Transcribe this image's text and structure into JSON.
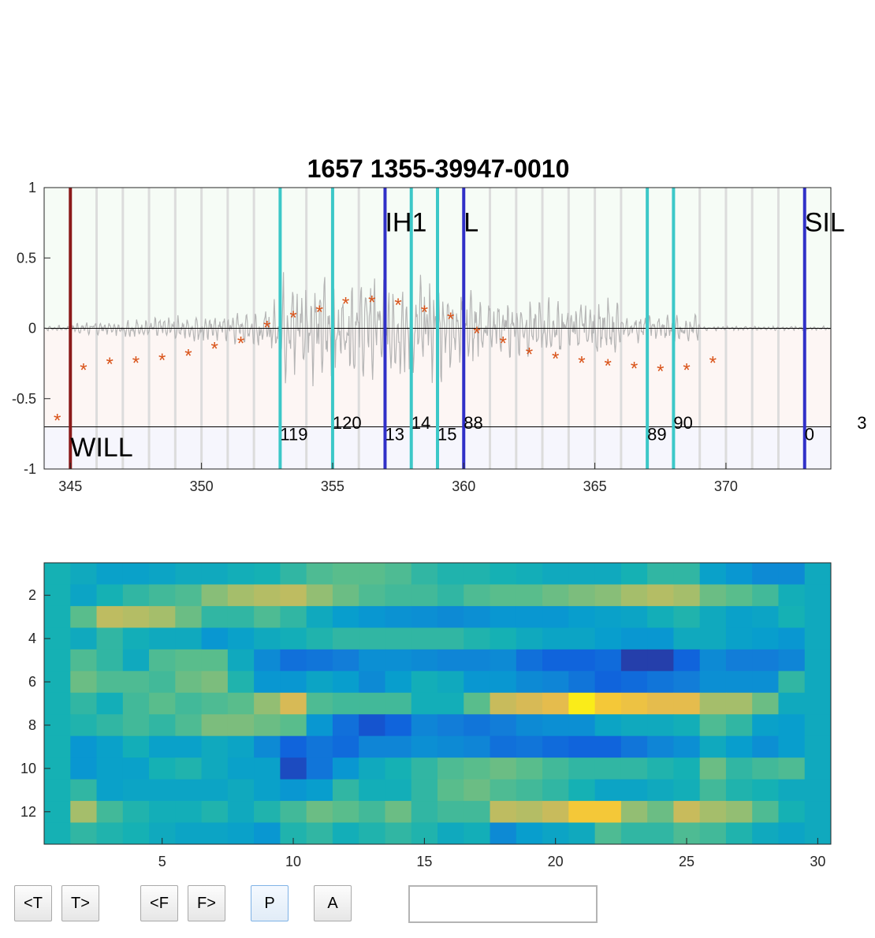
{
  "waveform_plot": {
    "title": "1657 1355-39947-0010",
    "ylim": [
      -1,
      1
    ],
    "xlim": [
      344,
      374
    ],
    "yticks": [
      1,
      0.5,
      0,
      -0.5,
      -1
    ],
    "ytick_labels": [
      "1",
      "0.5",
      "0",
      "-0.5",
      "-1"
    ],
    "xticks": [
      345,
      350,
      355,
      360,
      365,
      370
    ],
    "xtick_labels": [
      "345",
      "350",
      "355",
      "360",
      "365",
      "370"
    ],
    "label_line_y": -0.7,
    "frame_grid": [
      346,
      347,
      348,
      349,
      350,
      351,
      352,
      353,
      354,
      355,
      356,
      357,
      358,
      359,
      360,
      361,
      362,
      363,
      364,
      365,
      366,
      367,
      368,
      369,
      370,
      371,
      372,
      373
    ],
    "word_boundaries": [
      {
        "x": 345,
        "color": "#8b1a1a"
      }
    ],
    "phone_boundaries": [
      {
        "x": 357,
        "color": "#3030c8"
      },
      {
        "x": 360,
        "color": "#3030c8"
      },
      {
        "x": 373,
        "color": "#3030c8"
      }
    ],
    "state_boundaries": [
      {
        "x": 353,
        "color": "#3cc8c8"
      },
      {
        "x": 355,
        "color": "#3cc8c8"
      },
      {
        "x": 358,
        "color": "#3cc8c8"
      },
      {
        "x": 359,
        "color": "#3cc8c8"
      },
      {
        "x": 367,
        "color": "#3cc8c8"
      },
      {
        "x": 368,
        "color": "#3cc8c8"
      }
    ],
    "word_labels": [
      {
        "x": 345,
        "y": -0.82,
        "text": "WILL"
      }
    ],
    "phone_labels": [
      {
        "x": 357,
        "y": 0.78,
        "text": "IH1"
      },
      {
        "x": 360,
        "y": 0.78,
        "text": "L"
      },
      {
        "x": 373,
        "y": 0.78,
        "text": "SIL"
      }
    ],
    "frame_labels": [
      {
        "x": 353,
        "y": -0.75,
        "text": "119"
      },
      {
        "x": 355,
        "y": -0.67,
        "text": "120"
      },
      {
        "x": 357,
        "y": -0.75,
        "text": "13"
      },
      {
        "x": 358,
        "y": -0.67,
        "text": "14"
      },
      {
        "x": 359,
        "y": -0.75,
        "text": "15"
      },
      {
        "x": 360,
        "y": -0.67,
        "text": "88"
      },
      {
        "x": 367,
        "y": -0.75,
        "text": "89"
      },
      {
        "x": 368,
        "y": -0.67,
        "text": "90"
      },
      {
        "x": 373,
        "y": -0.75,
        "text": "0"
      },
      {
        "x": 375,
        "y": -0.67,
        "text": "3"
      }
    ],
    "markers": {
      "symbol": "*",
      "color": "#d95319",
      "points": [
        [
          344.5,
          -0.65
        ],
        [
          345.5,
          -0.29
        ],
        [
          346.5,
          -0.25
        ],
        [
          347.5,
          -0.24
        ],
        [
          348.5,
          -0.22
        ],
        [
          349.5,
          -0.19
        ],
        [
          350.5,
          -0.14
        ],
        [
          351.5,
          -0.1
        ],
        [
          352.5,
          0.01
        ],
        [
          353.5,
          0.08
        ],
        [
          354.5,
          0.12
        ],
        [
          355.5,
          0.18
        ],
        [
          356.5,
          0.19
        ],
        [
          357.5,
          0.17
        ],
        [
          358.5,
          0.12
        ],
        [
          359.5,
          0.07
        ],
        [
          360.5,
          -0.03
        ],
        [
          361.5,
          -0.1
        ],
        [
          362.5,
          -0.18
        ],
        [
          363.5,
          -0.21
        ],
        [
          364.5,
          -0.24
        ],
        [
          365.5,
          -0.26
        ],
        [
          366.5,
          -0.28
        ],
        [
          367.5,
          -0.3
        ],
        [
          368.5,
          -0.29
        ],
        [
          369.5,
          -0.24
        ]
      ]
    }
  },
  "spectrogram_plot": {
    "xlim": [
      0.5,
      30.5
    ],
    "ylim": [
      0.5,
      13.5
    ],
    "xticks": [
      5,
      10,
      15,
      20,
      25,
      30
    ],
    "xtick_labels": [
      "5",
      "10",
      "15",
      "20",
      "25",
      "30"
    ],
    "yticks": [
      2,
      4,
      6,
      8,
      10,
      12
    ],
    "ytick_labels": [
      "2",
      "4",
      "6",
      "8",
      "10",
      "12"
    ],
    "colormap": "parula",
    "values": [
      [
        0.5,
        0.45,
        0.4,
        0.4,
        0.42,
        0.45,
        0.45,
        0.48,
        0.5,
        0.55,
        0.6,
        0.62,
        0.62,
        0.6,
        0.55,
        0.52,
        0.52,
        0.5,
        0.48,
        0.45,
        0.45,
        0.45,
        0.5,
        0.55,
        0.55,
        0.4,
        0.35,
        0.3,
        0.3,
        0.45
      ],
      [
        0.5,
        0.42,
        0.5,
        0.55,
        0.58,
        0.6,
        0.7,
        0.75,
        0.78,
        0.8,
        0.72,
        0.65,
        0.6,
        0.58,
        0.58,
        0.55,
        0.6,
        0.62,
        0.62,
        0.65,
        0.68,
        0.7,
        0.75,
        0.78,
        0.75,
        0.65,
        0.62,
        0.58,
        0.48,
        0.45
      ],
      [
        0.5,
        0.62,
        0.8,
        0.78,
        0.75,
        0.65,
        0.55,
        0.55,
        0.6,
        0.55,
        0.45,
        0.38,
        0.35,
        0.33,
        0.32,
        0.3,
        0.32,
        0.35,
        0.35,
        0.35,
        0.38,
        0.4,
        0.42,
        0.48,
        0.52,
        0.45,
        0.4,
        0.42,
        0.5,
        0.45
      ],
      [
        0.5,
        0.45,
        0.55,
        0.48,
        0.45,
        0.45,
        0.35,
        0.4,
        0.45,
        0.48,
        0.52,
        0.55,
        0.55,
        0.55,
        0.55,
        0.55,
        0.52,
        0.5,
        0.45,
        0.42,
        0.42,
        0.38,
        0.35,
        0.35,
        0.45,
        0.45,
        0.4,
        0.38,
        0.35,
        0.45
      ],
      [
        0.5,
        0.6,
        0.55,
        0.45,
        0.6,
        0.62,
        0.62,
        0.45,
        0.3,
        0.2,
        0.22,
        0.25,
        0.32,
        0.32,
        0.3,
        0.28,
        0.28,
        0.3,
        0.2,
        0.15,
        0.15,
        0.18,
        0.05,
        0.05,
        0.15,
        0.3,
        0.25,
        0.25,
        0.28,
        0.45
      ],
      [
        0.5,
        0.65,
        0.6,
        0.6,
        0.58,
        0.65,
        0.68,
        0.52,
        0.35,
        0.35,
        0.42,
        0.38,
        0.3,
        0.38,
        0.48,
        0.45,
        0.35,
        0.35,
        0.3,
        0.28,
        0.22,
        0.15,
        0.18,
        0.22,
        0.25,
        0.32,
        0.32,
        0.32,
        0.55,
        0.45
      ],
      [
        0.5,
        0.55,
        0.48,
        0.58,
        0.62,
        0.58,
        0.6,
        0.62,
        0.72,
        0.85,
        0.6,
        0.58,
        0.58,
        0.58,
        0.48,
        0.48,
        0.62,
        0.82,
        0.85,
        0.88,
        0.98,
        0.92,
        0.9,
        0.88,
        0.88,
        0.75,
        0.75,
        0.65,
        0.45,
        0.45
      ],
      [
        0.5,
        0.52,
        0.55,
        0.58,
        0.55,
        0.6,
        0.68,
        0.68,
        0.65,
        0.62,
        0.35,
        0.2,
        0.1,
        0.15,
        0.28,
        0.25,
        0.22,
        0.25,
        0.3,
        0.32,
        0.32,
        0.42,
        0.45,
        0.45,
        0.48,
        0.6,
        0.55,
        0.4,
        0.38,
        0.45
      ],
      [
        0.5,
        0.35,
        0.4,
        0.48,
        0.4,
        0.4,
        0.45,
        0.42,
        0.3,
        0.15,
        0.22,
        0.18,
        0.28,
        0.28,
        0.32,
        0.3,
        0.28,
        0.2,
        0.22,
        0.18,
        0.15,
        0.15,
        0.22,
        0.28,
        0.32,
        0.45,
        0.38,
        0.32,
        0.38,
        0.45
      ],
      [
        0.5,
        0.35,
        0.4,
        0.4,
        0.5,
        0.52,
        0.45,
        0.4,
        0.4,
        0.08,
        0.22,
        0.35,
        0.45,
        0.5,
        0.55,
        0.6,
        0.62,
        0.65,
        0.62,
        0.58,
        0.55,
        0.55,
        0.55,
        0.52,
        0.5,
        0.65,
        0.55,
        0.58,
        0.6,
        0.45
      ],
      [
        0.5,
        0.55,
        0.4,
        0.42,
        0.42,
        0.42,
        0.42,
        0.45,
        0.4,
        0.35,
        0.38,
        0.55,
        0.48,
        0.48,
        0.55,
        0.62,
        0.65,
        0.6,
        0.58,
        0.55,
        0.5,
        0.42,
        0.42,
        0.45,
        0.48,
        0.58,
        0.52,
        0.5,
        0.45,
        0.45
      ],
      [
        0.5,
        0.75,
        0.58,
        0.52,
        0.48,
        0.48,
        0.52,
        0.45,
        0.52,
        0.58,
        0.65,
        0.62,
        0.58,
        0.65,
        0.55,
        0.58,
        0.58,
        0.8,
        0.78,
        0.82,
        0.92,
        0.92,
        0.72,
        0.65,
        0.82,
        0.75,
        0.72,
        0.6,
        0.5,
        0.45
      ],
      [
        0.5,
        0.55,
        0.52,
        0.5,
        0.45,
        0.42,
        0.42,
        0.4,
        0.35,
        0.52,
        0.55,
        0.48,
        0.52,
        0.55,
        0.52,
        0.45,
        0.48,
        0.3,
        0.38,
        0.42,
        0.45,
        0.6,
        0.55,
        0.55,
        0.6,
        0.58,
        0.52,
        0.45,
        0.42,
        0.45
      ]
    ]
  },
  "controls": {
    "prev_t_label": "<T",
    "next_t_label": "T>",
    "prev_f_label": "<F",
    "next_f_label": "F>",
    "play_label": "P",
    "a_label": "A",
    "text_box_value": ""
  }
}
